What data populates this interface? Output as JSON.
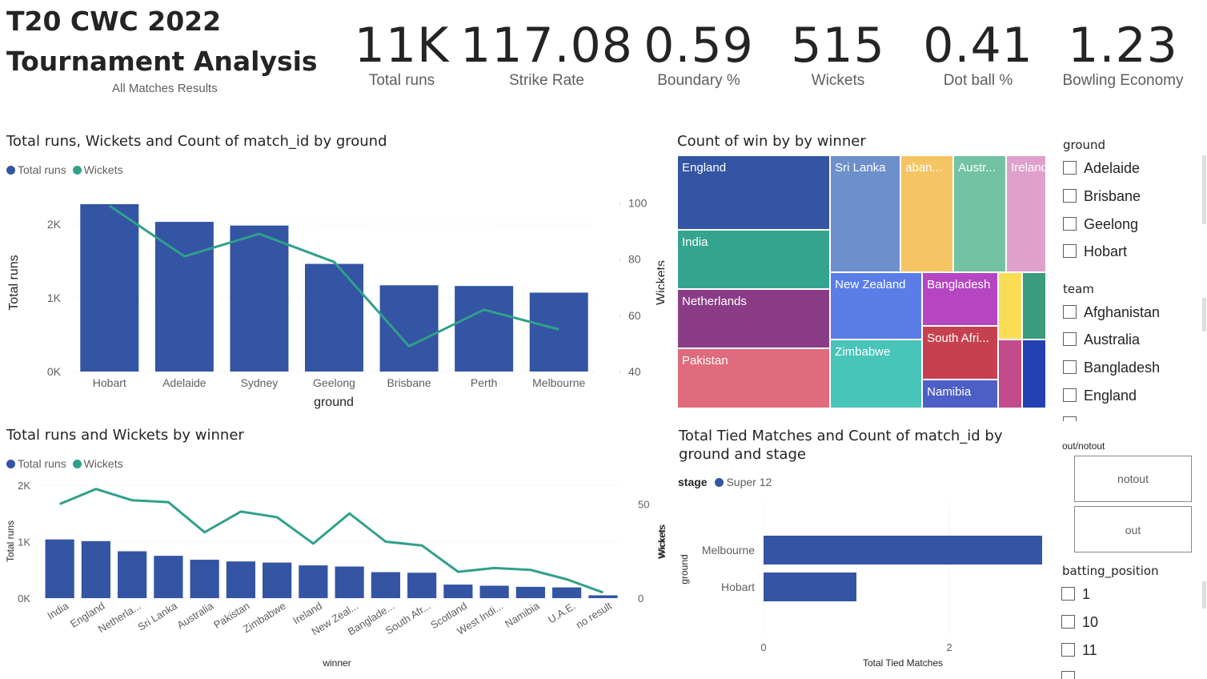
{
  "header": {
    "title_line1": "T20 CWC 2022",
    "title_line2": "Tournament Analysis",
    "subtitle": "All Matches Results"
  },
  "kpis": [
    {
      "value": "11K",
      "label": "Total runs"
    },
    {
      "value": "117.08",
      "label": "Strike Rate"
    },
    {
      "value": "0.59",
      "label": "Boundary %"
    },
    {
      "value": "515",
      "label": "Wickets"
    },
    {
      "value": "0.41",
      "label": "Dot ball %"
    },
    {
      "value": "1.23",
      "label": "Bowling Economy"
    }
  ],
  "colors": {
    "runs": "#3454a4",
    "wickets": "#30a08b",
    "text": "#252423",
    "muted": "#605e5c",
    "grid": "#d9d9d9"
  },
  "chart_data": [
    {
      "type": "bar",
      "combo": "bar+line",
      "title": "Total runs, Wickets and Count of match_id by ground",
      "legend": [
        "Total runs",
        "Wickets"
      ],
      "legend_position": "top-left",
      "xlabel": "ground",
      "ylabel": "Total runs",
      "y2label": "Wickets",
      "categories": [
        "Hobart",
        "Adelaide",
        "Sydney",
        "Geelong",
        "Brisbane",
        "Perth",
        "Melbourne"
      ],
      "series": [
        {
          "name": "Total runs",
          "type": "bar",
          "values": [
            2270,
            2030,
            1980,
            1460,
            1170,
            1160,
            1070
          ]
        },
        {
          "name": "Wickets",
          "type": "line",
          "axis": "right",
          "values": [
            99,
            81,
            89,
            79,
            49,
            62,
            55
          ]
        }
      ],
      "ylim": [
        0,
        2400
      ],
      "yticks": [
        "0K",
        "1K",
        "2K"
      ],
      "y2lim": [
        40,
        103
      ],
      "y2ticks": [
        "40",
        "60",
        "80",
        "100"
      ],
      "grid": true
    },
    {
      "type": "bar",
      "combo": "bar+line",
      "title": "Total runs and Wickets by winner",
      "legend": [
        "Total runs",
        "Wickets"
      ],
      "legend_position": "top-left",
      "xlabel": "winner",
      "ylabel": "Total runs",
      "y2label": "Wickets",
      "categories": [
        "India",
        "England",
        "Netherla...",
        "Sri Lanka",
        "Australia",
        "Pakistan",
        "Zimbabwe",
        "Ireland",
        "New Zeal...",
        "Banglade...",
        "South Afr...",
        "Scotland",
        "West Indi...",
        "Namibia",
        "U.A.E.",
        "no result"
      ],
      "series": [
        {
          "name": "Total runs",
          "type": "bar",
          "values": [
            1040,
            1010,
            830,
            750,
            680,
            650,
            630,
            580,
            560,
            460,
            450,
            240,
            220,
            200,
            190,
            50
          ]
        },
        {
          "name": "Wickets",
          "type": "line",
          "axis": "right",
          "values": [
            50,
            58,
            52,
            51,
            35,
            46,
            43,
            29,
            45,
            30,
            28,
            14,
            16,
            15,
            10,
            3
          ]
        }
      ],
      "ylim": [
        0,
        2000
      ],
      "yticks": [
        "0K",
        "1K",
        "2K"
      ],
      "y2lim": [
        0,
        60
      ],
      "y2ticks": [
        "0",
        "50"
      ],
      "grid": true
    },
    {
      "type": "treemap",
      "title": "Count of win by by winner",
      "tiles": [
        {
          "label": "England",
          "color": "#3454a4",
          "value": 5
        },
        {
          "label": "India",
          "color": "#35a48f",
          "value": 4
        },
        {
          "label": "Netherlands",
          "color": "#8a3c87",
          "value": 4
        },
        {
          "label": "Pakistan",
          "color": "#df6b7c",
          "value": 4
        },
        {
          "label": "Sri Lanka",
          "color": "#6d8fcb",
          "value": 3
        },
        {
          "label": "aban...",
          "color": "#f5c563",
          "value": 2
        },
        {
          "label": "Austr...",
          "color": "#72c2a3",
          "value": 2
        },
        {
          "label": "Ireland",
          "color": "#dfa1cc",
          "value": 2
        },
        {
          "label": "New Zealand",
          "color": "#5b7de8",
          "value": 3
        },
        {
          "label": "Bangladesh",
          "color": "#b545c1",
          "value": 2
        },
        {
          "label": "",
          "color": "#fbdd55",
          "value": 1
        },
        {
          "label": "",
          "color": "#3a9b7e",
          "value": 1
        },
        {
          "label": "Zimbabwe",
          "color": "#49c4b9",
          "value": 3
        },
        {
          "label": "South Afri...",
          "color": "#c6414f",
          "value": 2
        },
        {
          "label": "Namibia",
          "color": "#4d5fc6",
          "value": 1
        },
        {
          "label": "",
          "color": "#c24b8b",
          "value": 1
        },
        {
          "label": "",
          "color": "#2441b2",
          "value": 1
        }
      ]
    },
    {
      "type": "bar",
      "orientation": "horizontal",
      "title": "Total Tied Matches and Count of match_id by ground and stage",
      "legend_title": "stage",
      "legend": [
        "Super 12"
      ],
      "legend_position": "top-left",
      "xlabel": "Total Tied Matches",
      "ylabel": "ground",
      "y2label": "Wickets",
      "categories": [
        "Melbourne",
        "Hobart"
      ],
      "series": [
        {
          "name": "Super 12",
          "values": [
            3,
            1
          ]
        }
      ],
      "xlim": [
        0,
        3
      ],
      "xticks": [
        "0",
        "2"
      ],
      "grid": true
    }
  ],
  "slicers": {
    "ground": {
      "title": "ground",
      "items": [
        "Adelaide",
        "Brisbane",
        "Geelong",
        "Hobart"
      ]
    },
    "team": {
      "title": "team",
      "items": [
        "Afghanistan",
        "Australia",
        "Bangladesh",
        "England"
      ]
    },
    "out_notout": {
      "title": "out/notout",
      "items": [
        "notout",
        "out"
      ]
    },
    "batting_position": {
      "title": "batting_position",
      "items": [
        "1",
        "10",
        "11"
      ]
    }
  }
}
